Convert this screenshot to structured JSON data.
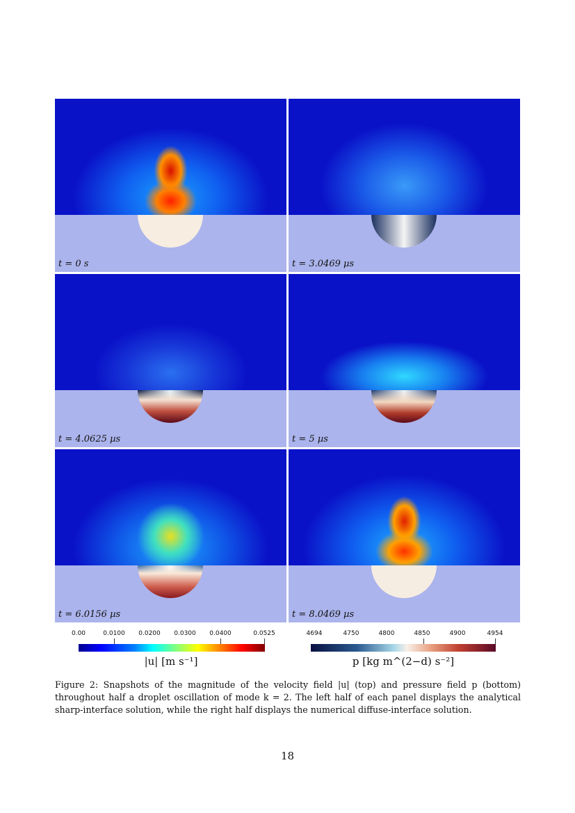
{
  "figure": {
    "panels": [
      {
        "label": "t = 0 s"
      },
      {
        "label": "t = 3.0469 µs"
      },
      {
        "label": "t = 4.0625 µs"
      },
      {
        "label": "t = 5 µs"
      },
      {
        "label": "t = 6.0156 µs"
      },
      {
        "label": "t = 8.0469 µs"
      }
    ],
    "velocity_colorbar": {
      "ticks": [
        "0.00",
        "0.0100",
        "0.0200",
        "0.0300",
        "0.0400",
        "0.0525"
      ],
      "label": "|u| [m s⁻¹]",
      "range": [
        0,
        0.0525
      ]
    },
    "pressure_colorbar": {
      "ticks": [
        "4694",
        "4750",
        "4800",
        "4850",
        "4900",
        "4954"
      ],
      "label": "p [kg m^(2−d) s⁻²]",
      "range": [
        4694,
        4954
      ]
    },
    "caption": "Figure 2: Snapshots of the magnitude of the velocity field |u| (top) and pressure field p (bottom) throughout half a droplet oscillation of mode k = 2. The left half of each panel displays the analytical sharp-interface solution, while the right half displays the numerical diffuse-interface solution."
  },
  "page_number": "18"
}
